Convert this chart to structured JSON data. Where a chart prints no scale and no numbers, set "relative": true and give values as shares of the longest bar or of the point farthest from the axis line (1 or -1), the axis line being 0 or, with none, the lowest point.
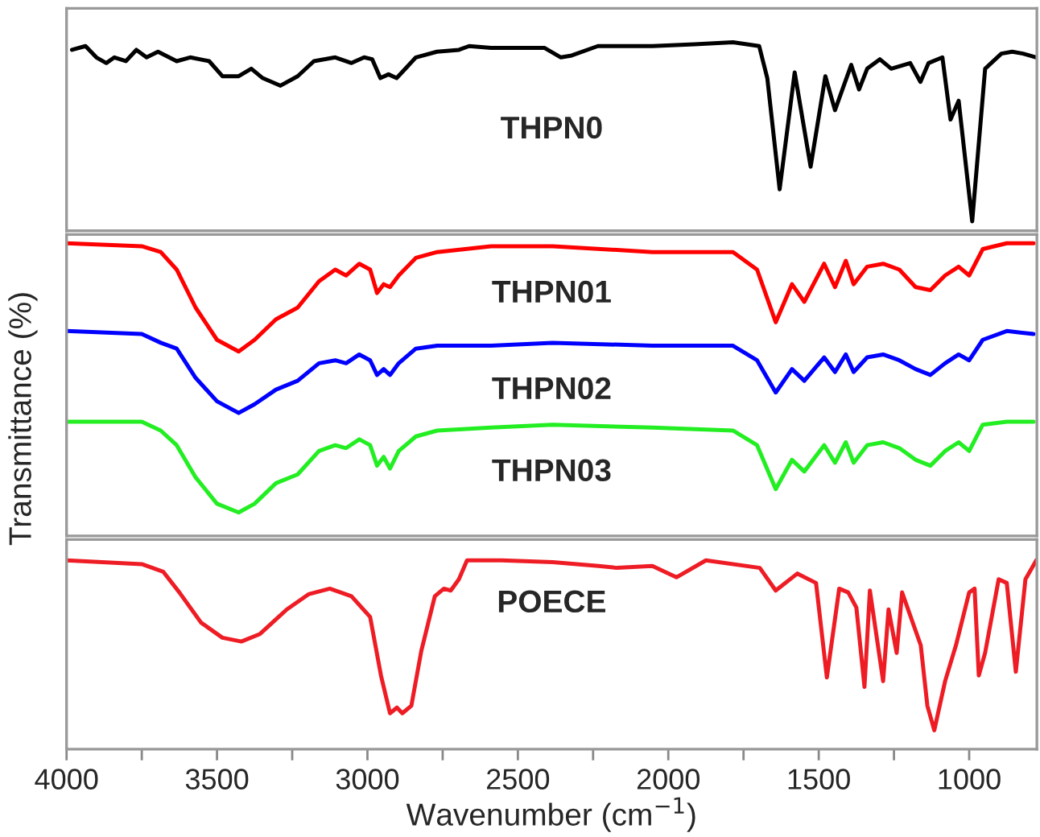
{
  "chart_data": [
    {
      "type": "line",
      "relative": true,
      "tick_labels": false,
      "grid": false,
      "legend": false,
      "marker": "none",
      "line_style": "solid",
      "xlim": [
        4000,
        775
      ],
      "x": [
        3982,
        3937,
        3901,
        3868,
        3841,
        3803,
        3768,
        3734,
        3696,
        3634,
        3589,
        3526,
        3482,
        3428,
        3386,
        3348,
        3289,
        3232,
        3178,
        3107,
        3053,
        3011,
        2984,
        2957,
        2930,
        2903,
        2839,
        2769,
        2696,
        2662,
        2589,
        2411,
        2357,
        2321,
        2234,
        2053,
        1912,
        1785,
        1698,
        1671,
        1630,
        1580,
        1527,
        1478,
        1446,
        1392,
        1366,
        1339,
        1297,
        1259,
        1196,
        1162,
        1135,
        1089,
        1062,
        1035,
        990,
        947,
        893,
        857,
        821,
        777
      ],
      "series": [
        {
          "name": "THPN0",
          "color": "#000000",
          "values": [
            0.96,
            0.98,
            0.92,
            0.89,
            0.92,
            0.9,
            0.96,
            0.92,
            0.95,
            0.9,
            0.92,
            0.9,
            0.82,
            0.82,
            0.86,
            0.81,
            0.77,
            0.82,
            0.9,
            0.92,
            0.89,
            0.92,
            0.91,
            0.81,
            0.83,
            0.81,
            0.92,
            0.95,
            0.96,
            0.98,
            0.97,
            0.97,
            0.92,
            0.93,
            0.98,
            0.98,
            0.99,
            1.0,
            0.98,
            0.81,
            0.22,
            0.84,
            0.34,
            0.82,
            0.64,
            0.88,
            0.75,
            0.86,
            0.91,
            0.86,
            0.89,
            0.79,
            0.89,
            0.92,
            0.59,
            0.69,
            0.05,
            0.86,
            0.94,
            0.95,
            0.94,
            0.92
          ]
        }
      ]
    },
    {
      "type": "line",
      "relative": true,
      "tick_labels": false,
      "grid": false,
      "legend": false,
      "marker": "none",
      "line_style": "solid",
      "ylabel": "Transmittance (%)",
      "xlim": [
        4000,
        775
      ],
      "x": [
        4000,
        3750,
        3687,
        3634,
        3571,
        3500,
        3428,
        3375,
        3304,
        3232,
        3161,
        3107,
        3071,
        3027,
        2991,
        2968,
        2946,
        2925,
        2896,
        2839,
        2768,
        2589,
        2384,
        2053,
        1785,
        1705,
        1643,
        1589,
        1548,
        1482,
        1446,
        1410,
        1384,
        1339,
        1286,
        1232,
        1178,
        1129,
        1080,
        1035,
        1000,
        955,
        875,
        786
      ],
      "series": [
        {
          "name": "THPN01",
          "color": "#ff0000",
          "values": [
            1.0,
            0.99,
            0.97,
            0.91,
            0.78,
            0.67,
            0.63,
            0.67,
            0.74,
            0.78,
            0.87,
            0.91,
            0.89,
            0.93,
            0.91,
            0.83,
            0.86,
            0.85,
            0.89,
            0.95,
            0.97,
            0.99,
            0.99,
            0.97,
            0.97,
            0.91,
            0.73,
            0.86,
            0.8,
            0.93,
            0.85,
            0.94,
            0.86,
            0.92,
            0.93,
            0.91,
            0.85,
            0.84,
            0.89,
            0.92,
            0.89,
            0.98,
            1.0,
            1.0
          ]
        },
        {
          "name": "THPN02",
          "color": "#0000ff",
          "values": [
            0.7,
            0.69,
            0.66,
            0.64,
            0.54,
            0.46,
            0.42,
            0.45,
            0.5,
            0.53,
            0.59,
            0.6,
            0.59,
            0.62,
            0.6,
            0.55,
            0.57,
            0.55,
            0.59,
            0.64,
            0.65,
            0.65,
            0.66,
            0.65,
            0.65,
            0.6,
            0.49,
            0.57,
            0.53,
            0.61,
            0.56,
            0.62,
            0.56,
            0.61,
            0.62,
            0.6,
            0.57,
            0.55,
            0.59,
            0.62,
            0.6,
            0.67,
            0.7,
            0.69
          ]
        },
        {
          "name": "THPN03",
          "color": "#22ee22",
          "values": [
            0.39,
            0.39,
            0.36,
            0.31,
            0.2,
            0.11,
            0.08,
            0.11,
            0.18,
            0.21,
            0.29,
            0.31,
            0.3,
            0.33,
            0.31,
            0.24,
            0.27,
            0.23,
            0.29,
            0.34,
            0.36,
            0.37,
            0.38,
            0.37,
            0.36,
            0.31,
            0.16,
            0.26,
            0.22,
            0.31,
            0.25,
            0.32,
            0.25,
            0.31,
            0.32,
            0.3,
            0.26,
            0.24,
            0.29,
            0.32,
            0.29,
            0.38,
            0.39,
            0.39
          ]
        }
      ]
    },
    {
      "type": "line",
      "relative": true,
      "tick_labels": "x",
      "grid": false,
      "legend": false,
      "marker": "none",
      "line_style": "solid",
      "xlabel": "Wavenumber (cm$^{−1}$)",
      "xlim": [
        4000,
        775
      ],
      "xticks": [
        4000,
        {
          "value": 3750,
          "label": null
        },
        3500,
        {
          "value": 3250,
          "label": null
        },
        3000,
        {
          "value": 2750,
          "label": null
        },
        2500,
        {
          "value": 2250,
          "label": null
        },
        2000,
        {
          "value": 1750,
          "label": null
        },
        1500,
        {
          "value": 1250,
          "label": null
        },
        1000
      ],
      "x": [
        4000,
        3750,
        3679,
        3625,
        3553,
        3482,
        3419,
        3357,
        3268,
        3196,
        3125,
        3053,
        2991,
        2955,
        2925,
        2902,
        2884,
        2854,
        2821,
        2776,
        2746,
        2723,
        2696,
        2669,
        2554,
        2384,
        2232,
        2170,
        2053,
        1973,
        1875,
        1696,
        1643,
        1571,
        1509,
        1473,
        1432,
        1402,
        1375,
        1348,
        1330,
        1286,
        1268,
        1241,
        1223,
        1161,
        1139,
        1116,
        1080,
        1044,
        1000,
        982,
        968,
        947,
        902,
        875,
        845,
        813,
        777
      ],
      "series": [
        {
          "name": "POECE",
          "color": "#ee1c24",
          "values": [
            1.0,
            0.98,
            0.94,
            0.83,
            0.67,
            0.59,
            0.57,
            0.61,
            0.74,
            0.82,
            0.85,
            0.81,
            0.7,
            0.39,
            0.19,
            0.22,
            0.19,
            0.23,
            0.52,
            0.81,
            0.85,
            0.84,
            0.9,
            1.0,
            1.0,
            0.99,
            0.97,
            0.96,
            0.97,
            0.91,
            1.0,
            0.96,
            0.84,
            0.93,
            0.88,
            0.38,
            0.85,
            0.83,
            0.75,
            0.33,
            0.84,
            0.36,
            0.74,
            0.51,
            0.83,
            0.55,
            0.23,
            0.1,
            0.36,
            0.55,
            0.83,
            0.85,
            0.39,
            0.51,
            0.9,
            0.88,
            0.41,
            0.9,
            1.0
          ]
        }
      ]
    }
  ]
}
